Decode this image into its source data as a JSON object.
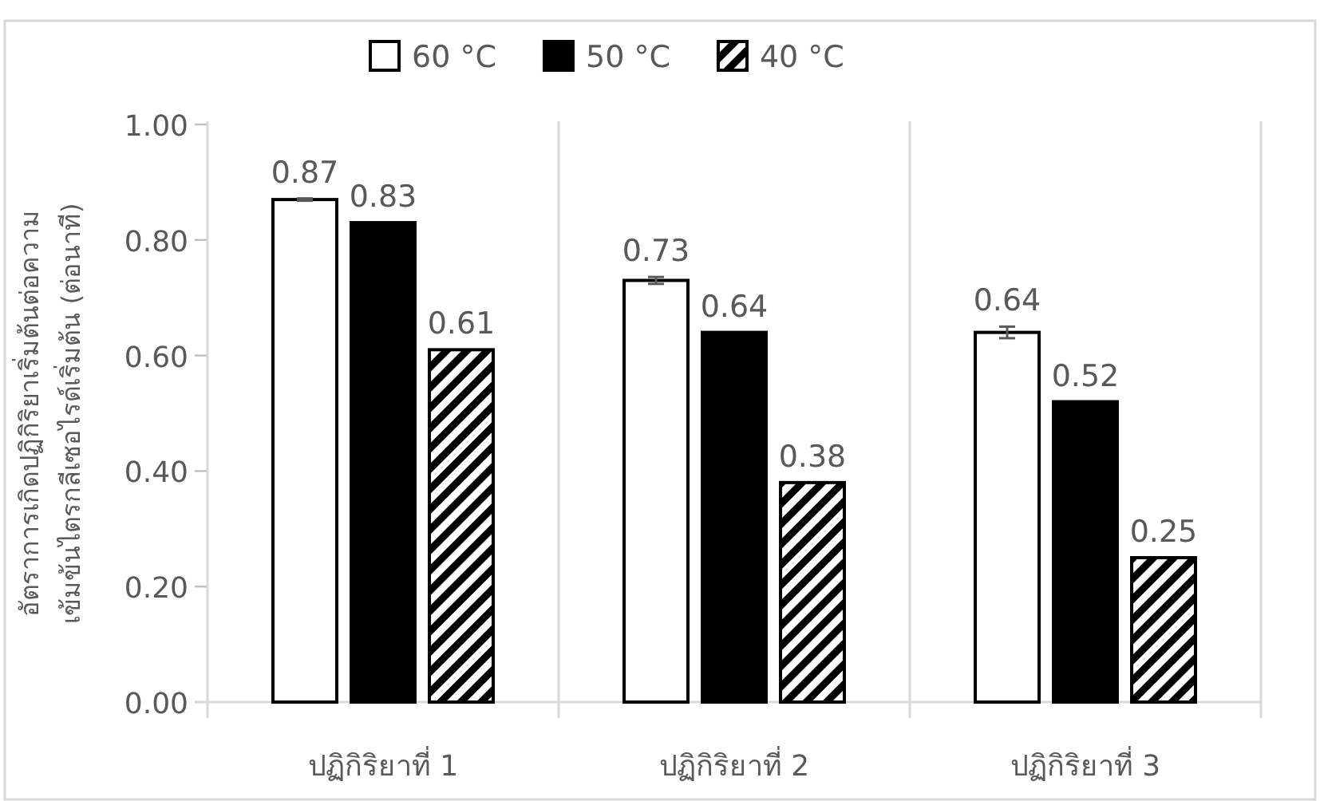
{
  "chart_data": {
    "type": "bar",
    "ylabel": "อัตราการเกิดปฏิกิริยาเริ่มต้นต่อความ\nเข้มข้นไตรกลีเซอไรด์เริ่มต้น (ต่อนาที)",
    "categories": [
      "ปฏิกิริยาที่ 1",
      "ปฏิกิริยาที่ 2",
      "ปฏิกิริยาที่ 3"
    ],
    "series": [
      {
        "name": "60 °C",
        "color": "#ffffff",
        "values": [
          0.87,
          0.73,
          0.64
        ],
        "errors": [
          0.002,
          0.006,
          0.01
        ]
      },
      {
        "name": "50 °C",
        "color": "#000000",
        "values": [
          0.83,
          0.64,
          0.52
        ]
      },
      {
        "name": "40 °C",
        "color": "#000000",
        "values": [
          0.61,
          0.38,
          0.25
        ]
      }
    ],
    "ylim": [
      0,
      1
    ],
    "yticks": [
      {
        "value": 0,
        "label": "0.00"
      },
      {
        "value": 0.2,
        "label": "0.20"
      },
      {
        "value": 0.4,
        "label": "0.40"
      },
      {
        "value": 0.6,
        "label": "0.60"
      },
      {
        "value": 0.8,
        "label": "0.80"
      },
      {
        "value": 1,
        "label": "1.00"
      }
    ],
    "grid": "x",
    "legend": "top",
    "data_labels": true
  }
}
